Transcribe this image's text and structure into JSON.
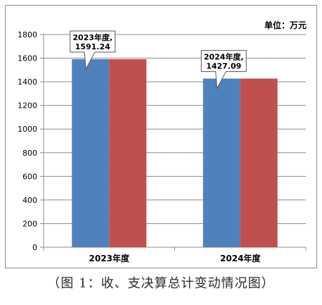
{
  "chart_data": {
    "type": "bar",
    "categories": [
      "2023年度",
      "2024年度"
    ],
    "series": [
      {
        "values": [
          1591.24,
          1427.09
        ],
        "color": "#4f81bd"
      },
      {
        "values": [
          1591.24,
          1427.09
        ],
        "color": "#c0504d"
      }
    ],
    "ylim": [
      0,
      1800
    ],
    "yticks": [
      0,
      200,
      400,
      600,
      800,
      1000,
      1200,
      1400,
      1600,
      1800
    ],
    "unit_label": "单位：万元",
    "grid": true,
    "callouts": [
      {
        "line1": "2023年度,",
        "line2": "1591.24"
      },
      {
        "line1": "2024年度,",
        "line2": "1427.09"
      }
    ]
  },
  "caption": "（图 1：收、支决算总计变动情况图）"
}
